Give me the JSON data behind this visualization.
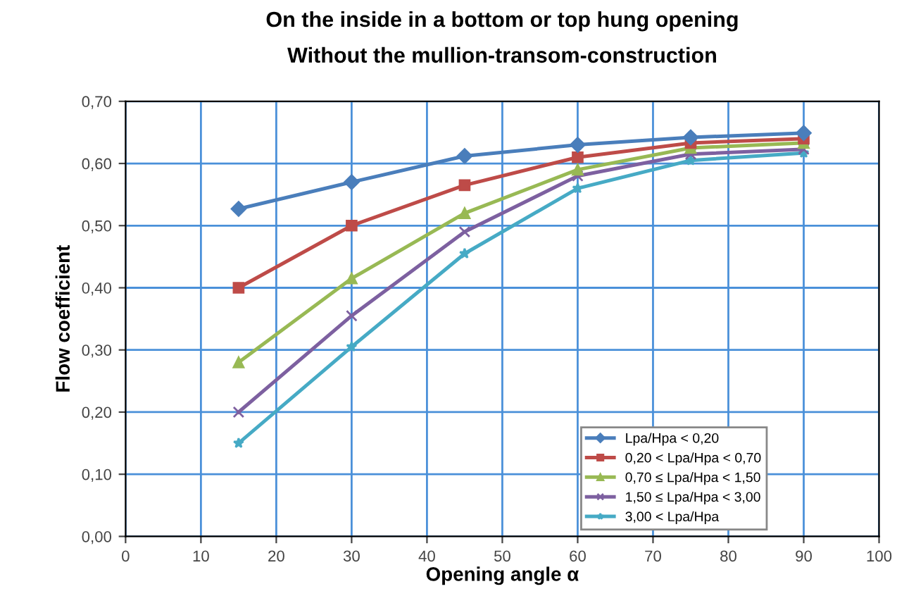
{
  "chart_data": {
    "type": "line",
    "title": "On the inside in a bottom or top hung opening",
    "subtitle": "Without the mullion-transom-construction",
    "xlabel": "Opening angle α",
    "ylabel": "Flow coefficient",
    "x": [
      15,
      30,
      45,
      60,
      75,
      90
    ],
    "series": [
      {
        "name": "Lpa/Hpa < 0,20",
        "color": "#4a7ebb",
        "marker": "diamond",
        "values": [
          0.527,
          0.57,
          0.612,
          0.63,
          0.642,
          0.649
        ]
      },
      {
        "name": "0,20 < Lpa/Hpa < 0,70",
        "color": "#be4b48",
        "marker": "square",
        "values": [
          0.4,
          0.5,
          0.565,
          0.61,
          0.633,
          0.64
        ]
      },
      {
        "name": "0,70 ≤ Lpa/Hpa < 1,50",
        "color": "#98b954",
        "marker": "triangle",
        "values": [
          0.28,
          0.415,
          0.52,
          0.59,
          0.625,
          0.633
        ]
      },
      {
        "name": "1,50 ≤ Lpa/Hpa < 3,00",
        "color": "#7d60a0",
        "marker": "cross",
        "values": [
          0.2,
          0.355,
          0.49,
          0.58,
          0.615,
          0.623
        ]
      },
      {
        "name": "3,00 < Lpa/Hpa",
        "color": "#46aac5",
        "marker": "star",
        "values": [
          0.15,
          0.305,
          0.455,
          0.56,
          0.605,
          0.617
        ]
      }
    ],
    "xlim": [
      0,
      100
    ],
    "xticks": [
      0,
      10,
      20,
      30,
      40,
      50,
      60,
      70,
      80,
      90,
      100
    ],
    "ylim": [
      0,
      0.7
    ],
    "yticks": [
      {
        "value": 0,
        "label": "0,00"
      },
      {
        "value": 0.1,
        "label": "0,10"
      },
      {
        "value": 0.2,
        "label": "0,20"
      },
      {
        "value": 0.3,
        "label": "0,30"
      },
      {
        "value": 0.4,
        "label": "0,40"
      },
      {
        "value": 0.5,
        "label": "0,50"
      },
      {
        "value": 0.6,
        "label": "0,60"
      },
      {
        "value": 0.7,
        "label": "0,70"
      }
    ],
    "grid": true,
    "legend": "bottom right"
  }
}
